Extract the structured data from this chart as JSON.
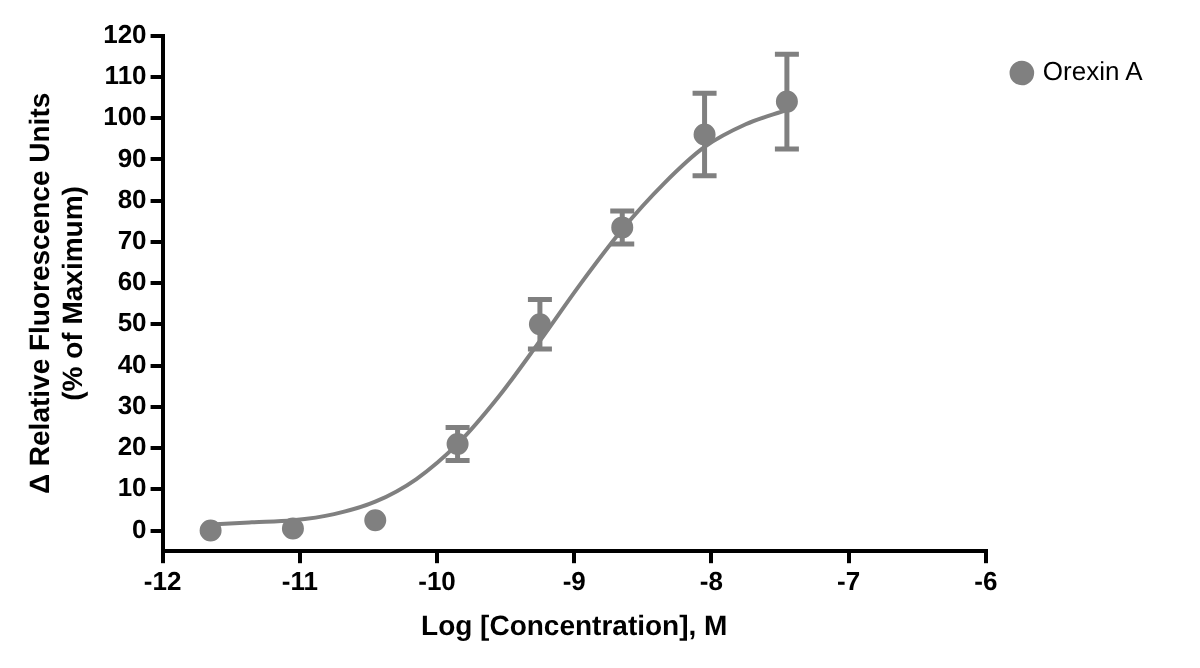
{
  "chart_data": {
    "type": "scatter",
    "xlabel": "Log [Concentration], M",
    "ylabel": "Δ Relative Fluorescence Units\n(% of Maximum)",
    "xlim": [
      -12,
      -6
    ],
    "xticks": [
      -12,
      -11,
      -10,
      -9,
      -8,
      -7,
      -6
    ],
    "ylim": [
      -5,
      120
    ],
    "yticks": [
      0,
      10,
      20,
      30,
      40,
      50,
      60,
      70,
      80,
      90,
      100,
      110,
      120
    ],
    "grid": false,
    "legend": "top right",
    "marker": "circle",
    "series": [
      {
        "name": "Orexin A",
        "type": "scatter",
        "color": "#808080",
        "x": [
          -11.65,
          -11.05,
          -10.45,
          -9.85,
          -9.25,
          -8.65,
          -8.05,
          -7.45
        ],
        "values": [
          0,
          0.5,
          2.5,
          21,
          50,
          73.5,
          96,
          104
        ],
        "errors": [
          null,
          null,
          null,
          4,
          6,
          4,
          10,
          11.5
        ]
      },
      {
        "type": "line",
        "color": "#808080",
        "marker": "none",
        "line_style": "solid",
        "x": [
          -11.65,
          -11.35,
          -11.05,
          -10.75,
          -10.45,
          -10.15,
          -9.85,
          -9.55,
          -9.25,
          -8.95,
          -8.65,
          -8.35,
          -8.05,
          -7.75,
          -7.45
        ],
        "values": [
          1.5,
          2,
          2.5,
          4,
          7,
          12.5,
          21,
          32.5,
          46,
          60,
          73,
          84,
          93,
          98.5,
          102
        ]
      }
    ]
  }
}
